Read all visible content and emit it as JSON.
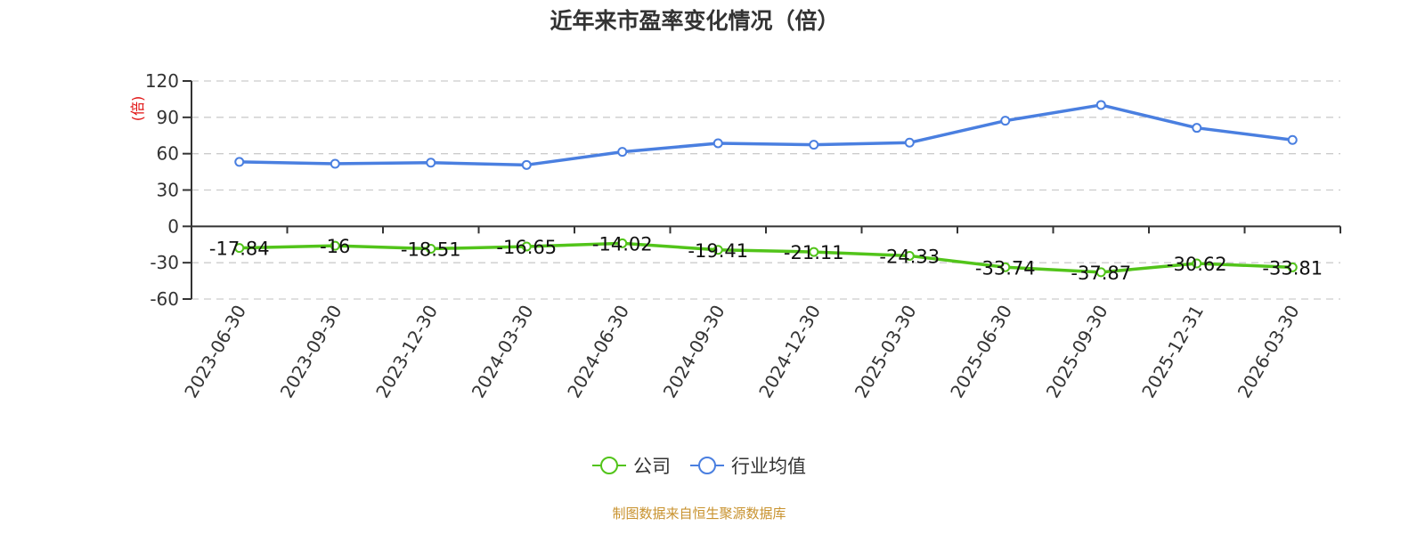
{
  "title": "近年来市盈率变化情况（倍）",
  "y_unit_label": "(倍)",
  "footer": "制图数据来自恒生聚源数据库",
  "colors": {
    "company": "#52c41a",
    "industry": "#4a7fe0",
    "unit_label": "#e01010",
    "footer": "#c8922e",
    "grid": "#cccccc",
    "axis": "#333333"
  },
  "legend": [
    {
      "label": "公司",
      "color": "#52c41a"
    },
    {
      "label": "行业均值",
      "color": "#4a7fe0"
    }
  ],
  "chart_data": {
    "type": "line",
    "title": "近年来市盈率变化情况（倍）",
    "xlabel": "",
    "ylabel": "(倍)",
    "ylim": [
      -60,
      120
    ],
    "yticks": [
      120,
      90,
      60,
      30,
      0,
      -30,
      -60
    ],
    "grid": true,
    "legend_position": "bottom",
    "categories": [
      "2023-06-30",
      "2023-09-30",
      "2023-12-30",
      "2024-03-30",
      "2024-06-30",
      "2024-09-30",
      "2024-12-30",
      "2025-03-30",
      "2025-06-30",
      "2025-09-30",
      "2025-12-31",
      "2026-03-30"
    ],
    "series": [
      {
        "name": "公司",
        "values": [
          -17.84,
          -16,
          -18.51,
          -16.65,
          -14.02,
          -19.41,
          -21.11,
          -24.33,
          -33.74,
          -37.87,
          -30.62,
          -33.81
        ],
        "labels": [
          "-17.84",
          "-16",
          "-18.51",
          "-16.65",
          "-14.02",
          "-19.41",
          "-21.11",
          "-24.33",
          "-33.74",
          "-37.87",
          "-30.62",
          "-33.81"
        ]
      },
      {
        "name": "行业均值",
        "values": [
          53.2,
          51.7,
          52.6,
          50.7,
          61.5,
          68.6,
          67.4,
          69.1,
          87.2,
          100.2,
          81.3,
          71.3
        ]
      }
    ]
  }
}
